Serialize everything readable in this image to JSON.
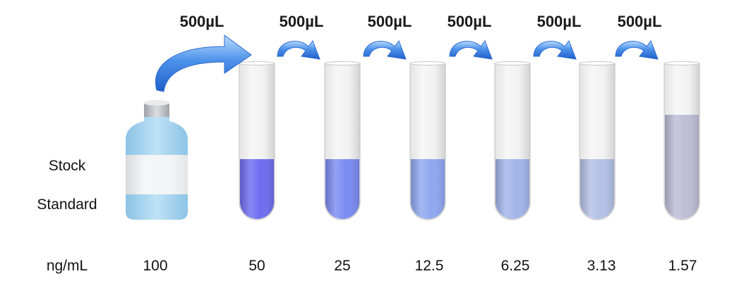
{
  "transfer_volumes": [
    "500µL",
    "500µL",
    "500µL",
    "500µL",
    "500µL",
    "500µL"
  ],
  "stock_label": {
    "line1": "Stock",
    "line2": "Standard"
  },
  "unit_label": "ng/mL",
  "concentrations": [
    "100",
    "50",
    "25",
    "12.5",
    "6.25",
    "3.13",
    "1.57"
  ],
  "tube_liquid_colors": [
    "#6f6ef0",
    "#7c8cf2",
    "#8fa7f0",
    "#a3b5ea",
    "#b4c1e6",
    "#bdbdd6"
  ],
  "arrow_color": "#4a8ee6",
  "bottle": {
    "cap": "#c9cbcf",
    "body": "#a8d4ee",
    "label": "#f4f4f4"
  }
}
